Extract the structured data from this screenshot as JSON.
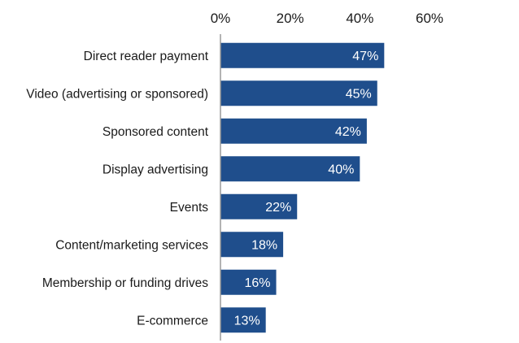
{
  "chart_data": {
    "type": "bar",
    "orientation": "horizontal",
    "categories": [
      "Direct reader payment",
      "Video (advertising or sponsored)",
      "Sponsored content",
      "Display advertising",
      "Events",
      "Content/marketing services",
      "Membership or funding drives",
      "E-commerce"
    ],
    "values": [
      47,
      45,
      42,
      40,
      22,
      18,
      16,
      13
    ],
    "value_labels": [
      "47%",
      "45%",
      "42%",
      "40%",
      "22%",
      "18%",
      "16%",
      "13%"
    ],
    "xlim": [
      0,
      60
    ],
    "x_ticks": [
      0,
      20,
      40,
      60
    ],
    "x_tick_labels": [
      "0%",
      "20%",
      "40%",
      "60%"
    ],
    "x_axis_position": "top",
    "grid": false,
    "legend": "none",
    "bar_color": "#1f4e8c",
    "label_color": "#ffffff"
  }
}
